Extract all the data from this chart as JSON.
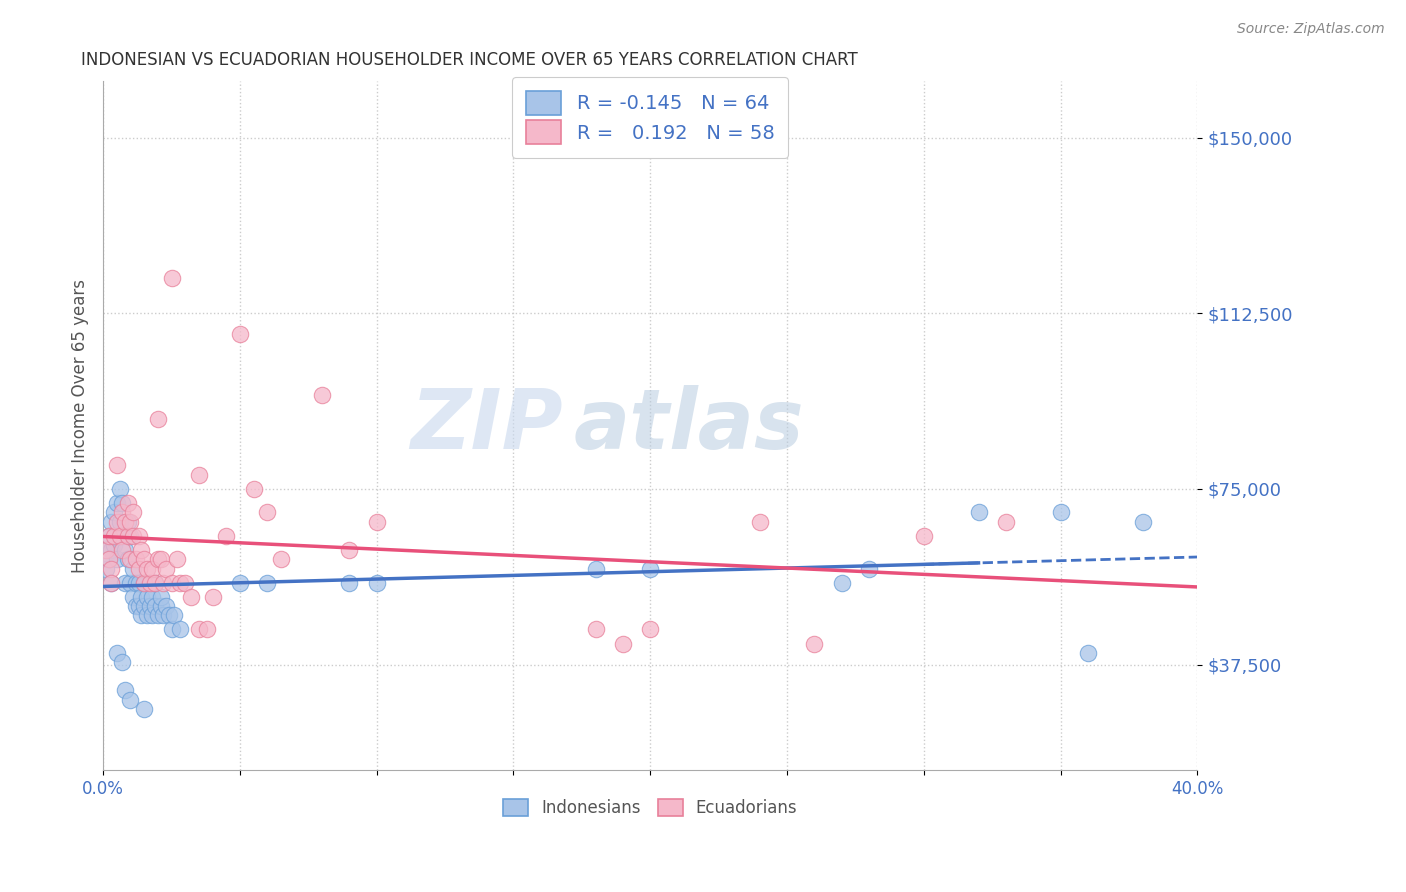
{
  "title": "INDONESIAN VS ECUADORIAN HOUSEHOLDER INCOME OVER 65 YEARS CORRELATION CHART",
  "source": "Source: ZipAtlas.com",
  "ylabel": "Householder Income Over 65 years",
  "legend_bottom": [
    "Indonesians",
    "Ecuadorians"
  ],
  "ytick_labels": [
    "$37,500",
    "$75,000",
    "$112,500",
    "$150,000"
  ],
  "ytick_values": [
    37500,
    75000,
    112500,
    150000
  ],
  "ylim": [
    15000,
    162000
  ],
  "xlim": [
    0.0,
    0.4
  ],
  "watermark_zip": "ZIP",
  "watermark_atlas": "atlas",
  "blue_R": "-0.145",
  "blue_N": "64",
  "pink_R": "0.192",
  "pink_N": "58",
  "blue_fill": "#a8c4e8",
  "pink_fill": "#f5b8ca",
  "blue_edge": "#6a9fd8",
  "pink_edge": "#e8809a",
  "blue_line": "#4472c4",
  "pink_line": "#e8507a",
  "legend_text_color": "#4472c4",
  "legend_R_neg_color": "#e84060",
  "blue_points": [
    [
      0.001,
      62000
    ],
    [
      0.001,
      58000
    ],
    [
      0.002,
      60000
    ],
    [
      0.002,
      65000
    ],
    [
      0.003,
      62000
    ],
    [
      0.003,
      55000
    ],
    [
      0.003,
      68000
    ],
    [
      0.004,
      70000
    ],
    [
      0.004,
      63000
    ],
    [
      0.005,
      72000
    ],
    [
      0.005,
      60000
    ],
    [
      0.006,
      68000
    ],
    [
      0.006,
      75000
    ],
    [
      0.007,
      65000
    ],
    [
      0.007,
      72000
    ],
    [
      0.008,
      62000
    ],
    [
      0.008,
      55000
    ],
    [
      0.009,
      68000
    ],
    [
      0.009,
      60000
    ],
    [
      0.01,
      65000
    ],
    [
      0.01,
      55000
    ],
    [
      0.011,
      52000
    ],
    [
      0.011,
      58000
    ],
    [
      0.012,
      50000
    ],
    [
      0.012,
      55000
    ],
    [
      0.013,
      50000
    ],
    [
      0.013,
      55000
    ],
    [
      0.014,
      52000
    ],
    [
      0.014,
      48000
    ],
    [
      0.015,
      50000
    ],
    [
      0.015,
      55000
    ],
    [
      0.016,
      48000
    ],
    [
      0.016,
      52000
    ],
    [
      0.017,
      50000
    ],
    [
      0.018,
      52000
    ],
    [
      0.018,
      48000
    ],
    [
      0.019,
      50000
    ],
    [
      0.019,
      55000
    ],
    [
      0.02,
      48000
    ],
    [
      0.021,
      50000
    ],
    [
      0.021,
      52000
    ],
    [
      0.022,
      48000
    ],
    [
      0.023,
      50000
    ],
    [
      0.024,
      48000
    ],
    [
      0.025,
      45000
    ],
    [
      0.026,
      48000
    ],
    [
      0.028,
      45000
    ],
    [
      0.008,
      32000
    ],
    [
      0.01,
      30000
    ],
    [
      0.015,
      28000
    ],
    [
      0.005,
      40000
    ],
    [
      0.007,
      38000
    ],
    [
      0.05,
      55000
    ],
    [
      0.06,
      55000
    ],
    [
      0.09,
      55000
    ],
    [
      0.1,
      55000
    ],
    [
      0.18,
      58000
    ],
    [
      0.2,
      58000
    ],
    [
      0.27,
      55000
    ],
    [
      0.32,
      70000
    ],
    [
      0.35,
      70000
    ],
    [
      0.38,
      68000
    ],
    [
      0.28,
      58000
    ],
    [
      0.36,
      40000
    ]
  ],
  "pink_points": [
    [
      0.001,
      62000
    ],
    [
      0.002,
      60000
    ],
    [
      0.002,
      65000
    ],
    [
      0.003,
      58000
    ],
    [
      0.003,
      55000
    ],
    [
      0.004,
      65000
    ],
    [
      0.005,
      80000
    ],
    [
      0.005,
      68000
    ],
    [
      0.006,
      65000
    ],
    [
      0.007,
      70000
    ],
    [
      0.007,
      62000
    ],
    [
      0.008,
      68000
    ],
    [
      0.009,
      72000
    ],
    [
      0.009,
      65000
    ],
    [
      0.01,
      60000
    ],
    [
      0.01,
      68000
    ],
    [
      0.011,
      70000
    ],
    [
      0.011,
      65000
    ],
    [
      0.012,
      60000
    ],
    [
      0.013,
      58000
    ],
    [
      0.013,
      65000
    ],
    [
      0.014,
      62000
    ],
    [
      0.015,
      55000
    ],
    [
      0.015,
      60000
    ],
    [
      0.016,
      58000
    ],
    [
      0.017,
      55000
    ],
    [
      0.018,
      58000
    ],
    [
      0.019,
      55000
    ],
    [
      0.02,
      90000
    ],
    [
      0.02,
      60000
    ],
    [
      0.021,
      60000
    ],
    [
      0.022,
      55000
    ],
    [
      0.023,
      58000
    ],
    [
      0.025,
      55000
    ],
    [
      0.025,
      120000
    ],
    [
      0.027,
      60000
    ],
    [
      0.028,
      55000
    ],
    [
      0.03,
      55000
    ],
    [
      0.032,
      52000
    ],
    [
      0.035,
      45000
    ],
    [
      0.035,
      78000
    ],
    [
      0.038,
      45000
    ],
    [
      0.04,
      52000
    ],
    [
      0.045,
      65000
    ],
    [
      0.05,
      108000
    ],
    [
      0.055,
      75000
    ],
    [
      0.06,
      70000
    ],
    [
      0.065,
      60000
    ],
    [
      0.08,
      95000
    ],
    [
      0.09,
      62000
    ],
    [
      0.1,
      68000
    ],
    [
      0.18,
      45000
    ],
    [
      0.19,
      42000
    ],
    [
      0.2,
      45000
    ],
    [
      0.24,
      68000
    ],
    [
      0.26,
      42000
    ],
    [
      0.3,
      65000
    ],
    [
      0.33,
      68000
    ]
  ]
}
